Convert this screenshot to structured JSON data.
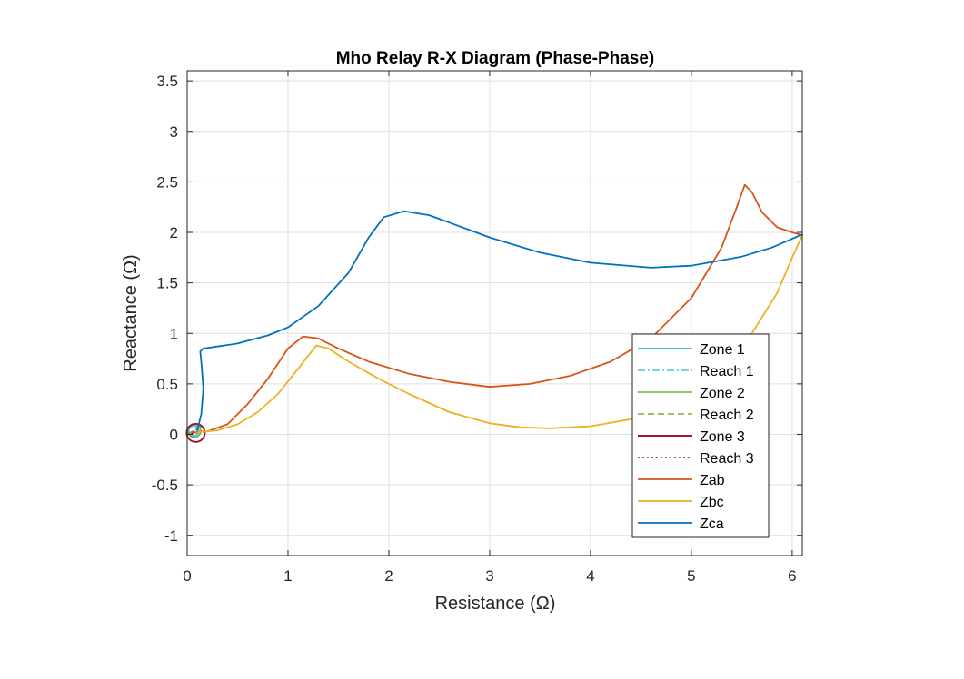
{
  "chart_data": {
    "type": "line",
    "title": "Mho Relay R-X Diagram (Phase-Phase)",
    "xlabel": "Resistance (Ω)",
    "ylabel": "Reactance (Ω)",
    "xlim": [
      0,
      6.1
    ],
    "ylim": [
      -1.2,
      3.6
    ],
    "xticks": [
      0,
      1,
      2,
      3,
      4,
      5,
      6
    ],
    "xtick_labels": [
      "0",
      "1",
      "2",
      "3",
      "4",
      "5",
      "6"
    ],
    "yticks": [
      -1,
      -0.5,
      0,
      0.5,
      1,
      1.5,
      2,
      2.5,
      3,
      3.5
    ],
    "ytick_labels": [
      "-1",
      "-0.5",
      "0",
      "0.5",
      "1",
      "1.5",
      "2",
      "2.5",
      "3",
      "3.5"
    ],
    "grid": true,
    "legend_position": "lower-right",
    "series": [
      {
        "name": "Zone 1",
        "kind": "circle",
        "center": [
          0.065,
          0.035
        ],
        "radius": 0.05,
        "color": "#4DBEEE",
        "dash": "solid",
        "width": 2
      },
      {
        "name": "Reach 1",
        "kind": "segment",
        "x": [
          0,
          0.12
        ],
        "y": [
          0,
          0.07
        ],
        "color": "#4DBEEE",
        "dash": "dashdot",
        "width": 1.5
      },
      {
        "name": "Zone 2",
        "kind": "circle",
        "center": [
          0.07,
          0.035
        ],
        "radius": 0.065,
        "color": "#77AC30",
        "dash": "solid",
        "width": 1.5
      },
      {
        "name": "Reach 2",
        "kind": "segment",
        "x": [
          0,
          0.14
        ],
        "y": [
          0,
          0.08
        ],
        "color": "#77AC30",
        "dash": "dashed",
        "width": 1.5
      },
      {
        "name": "Zone 3",
        "kind": "circle",
        "center": [
          0.085,
          0.015
        ],
        "radius": 0.09,
        "color": "#A2142F",
        "dash": "solid",
        "width": 2
      },
      {
        "name": "Reach 3",
        "kind": "segment",
        "x": [
          0,
          0.17
        ],
        "y": [
          0,
          0.03
        ],
        "color": "#A2142F",
        "dash": "dotted",
        "width": 1.5
      },
      {
        "name": "Zab",
        "kind": "line",
        "color": "#D95319",
        "dash": "solid",
        "width": 1.8,
        "x": [
          0.05,
          0.2,
          0.4,
          0.6,
          0.8,
          1.0,
          1.15,
          1.3,
          1.5,
          1.8,
          2.2,
          2.6,
          3.0,
          3.4,
          3.8,
          4.2,
          4.6,
          5.0,
          5.3,
          5.45,
          5.53,
          5.6,
          5.7,
          5.85,
          6.0,
          6.1
        ],
        "y": [
          0.02,
          0.03,
          0.1,
          0.3,
          0.55,
          0.85,
          0.97,
          0.95,
          0.85,
          0.72,
          0.6,
          0.52,
          0.47,
          0.5,
          0.58,
          0.72,
          0.95,
          1.35,
          1.85,
          2.25,
          2.47,
          2.4,
          2.2,
          2.05,
          2.0,
          1.97
        ]
      },
      {
        "name": "Zbc",
        "kind": "line",
        "color": "#EDB120",
        "dash": "solid",
        "width": 1.8,
        "x": [
          0.1,
          0.3,
          0.5,
          0.7,
          0.9,
          1.1,
          1.28,
          1.4,
          1.6,
          1.9,
          2.2,
          2.6,
          3.0,
          3.3,
          3.6,
          4.0,
          4.4,
          4.8,
          5.2,
          5.6,
          5.85,
          6.0,
          6.1
        ],
        "y": [
          0.02,
          0.04,
          0.1,
          0.22,
          0.4,
          0.65,
          0.88,
          0.85,
          0.72,
          0.55,
          0.4,
          0.22,
          0.11,
          0.07,
          0.06,
          0.08,
          0.15,
          0.28,
          0.55,
          1.0,
          1.4,
          1.75,
          1.97
        ]
      },
      {
        "name": "Zca",
        "kind": "line",
        "color": "#0072BD",
        "dash": "solid",
        "width": 1.8,
        "x": [
          0.1,
          0.14,
          0.16,
          0.15,
          0.14,
          0.13,
          0.16,
          0.3,
          0.5,
          0.8,
          1.0,
          1.3,
          1.6,
          1.8,
          1.95,
          2.15,
          2.4,
          2.7,
          3.0,
          3.5,
          4.0,
          4.6,
          5.0,
          5.5,
          5.8,
          6.1
        ],
        "y": [
          0.04,
          0.2,
          0.45,
          0.6,
          0.72,
          0.82,
          0.85,
          0.87,
          0.9,
          0.98,
          1.06,
          1.27,
          1.6,
          1.95,
          2.15,
          2.21,
          2.17,
          2.06,
          1.95,
          1.8,
          1.7,
          1.65,
          1.67,
          1.76,
          1.85,
          1.98
        ]
      }
    ]
  }
}
